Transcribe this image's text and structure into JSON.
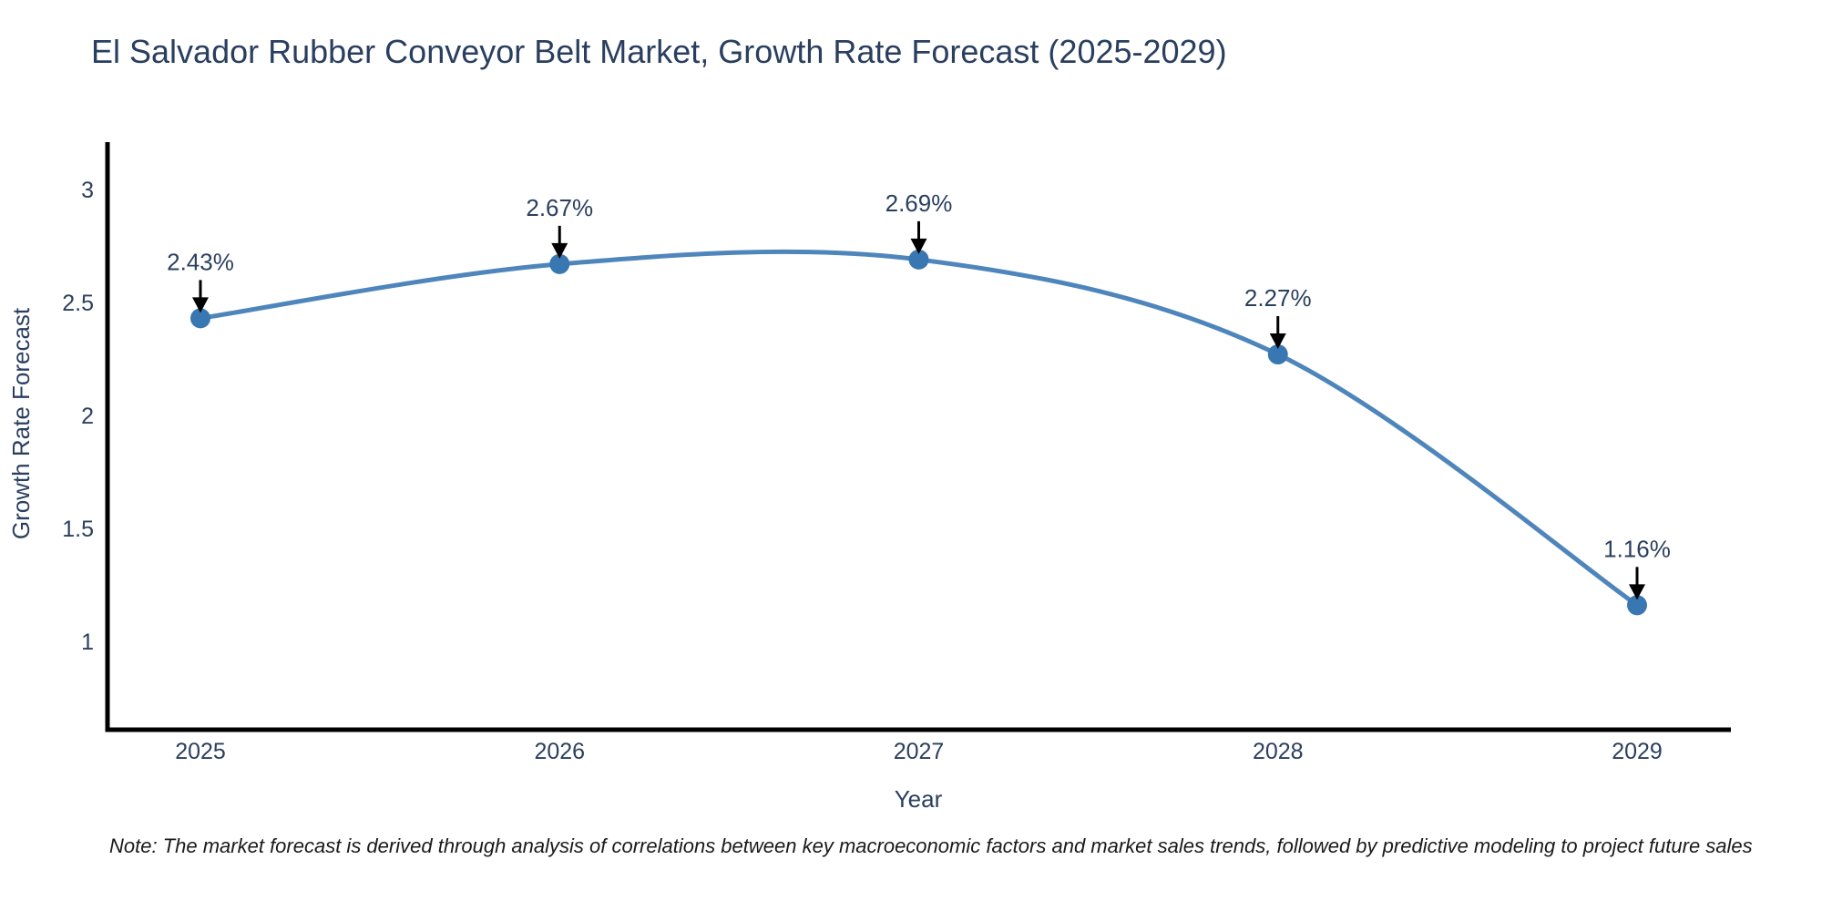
{
  "title": "El Salvador Rubber Conveyor Belt Market, Growth Rate Forecast (2025-2029)",
  "note": "Note: The market forecast is derived through analysis of correlations between key macroeconomic factors and market sales trends, followed by predictive modeling to project future sales",
  "chart_data": {
    "type": "line",
    "title": "El Salvador Rubber Conveyor Belt Market, Growth Rate Forecast (2025-2029)",
    "xlabel": "Year",
    "ylabel": "Growth Rate Forecast",
    "x": [
      2025,
      2026,
      2027,
      2028,
      2029
    ],
    "series": [
      {
        "name": "Growth Rate Forecast",
        "values": [
          2.43,
          2.67,
          2.69,
          2.27,
          1.16
        ]
      }
    ],
    "point_labels": [
      "2.43%",
      "2.67%",
      "2.69%",
      "2.27%",
      "1.16%"
    ],
    "xticks": [
      "2025",
      "2026",
      "2027",
      "2028",
      "2029"
    ],
    "yticks": [
      "1",
      "1.5",
      "2",
      "2.5",
      "3"
    ],
    "ytick_values": [
      1,
      1.5,
      2,
      2.5,
      3
    ],
    "ylim": [
      0.6,
      3.2
    ],
    "grid": false,
    "legend": "none",
    "line_shape": "spline",
    "colors": {
      "line": "#4e86bc",
      "marker": "#3877b1",
      "axis": "#000000",
      "text": "#2a3f5f",
      "annotation_arrow": "#000000",
      "background": "#ffffff"
    }
  }
}
